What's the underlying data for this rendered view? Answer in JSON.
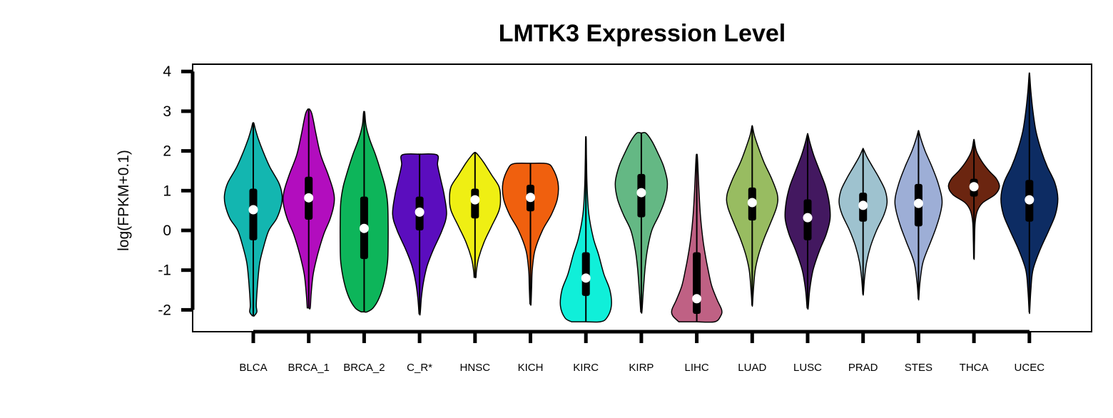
{
  "chart_data": {
    "type": "violin",
    "title": "LMTK3 Expression Level",
    "xlabel": "",
    "ylabel": "log(FPKM+0.1)",
    "ylim": [
      -2.55,
      4.2
    ],
    "yticks": [
      -2,
      -1,
      0,
      1,
      2,
      3,
      4
    ],
    "categories": [
      "BLCA",
      "BRCA_1",
      "BRCA_2",
      "C_R*",
      "HNSC",
      "KICH",
      "KIRC",
      "KIRP",
      "LIHC",
      "LUAD",
      "LUSC",
      "PRAD",
      "STES",
      "THCA",
      "UCEC"
    ],
    "colors": [
      "#13B6B0",
      "#B20DBE",
      "#0DB55A",
      "#5B0DBE",
      "#EFEF13",
      "#F0600E",
      "#10EFD9",
      "#64B884",
      "#BF6184",
      "#98BC61",
      "#431860",
      "#9EC2CF",
      "#9DAED6",
      "#6B2510",
      "#0D2C63"
    ],
    "series": [
      {
        "min": -2.15,
        "q1": -0.25,
        "median": 0.52,
        "q3": 1.05,
        "max": 2.7
      },
      {
        "min": -1.95,
        "q1": 0.27,
        "median": 0.82,
        "q3": 1.35,
        "max": 3.05
      },
      {
        "min": -2.05,
        "q1": -0.72,
        "median": 0.05,
        "q3": 0.85,
        "max": 2.97
      },
      {
        "min": -2.1,
        "q1": 0.0,
        "median": 0.46,
        "q3": 0.85,
        "max": 1.92
      },
      {
        "min": -1.18,
        "q1": 0.3,
        "median": 0.77,
        "q3": 1.05,
        "max": 1.96
      },
      {
        "min": -1.85,
        "q1": 0.48,
        "median": 0.83,
        "q3": 1.15,
        "max": 1.68
      },
      {
        "min": -2.3,
        "q1": -1.65,
        "median": -1.2,
        "q3": -0.55,
        "max": 2.32
      },
      {
        "min": -2.05,
        "q1": 0.33,
        "median": 0.95,
        "q3": 1.42,
        "max": 2.45
      },
      {
        "min": -2.3,
        "q1": -2.1,
        "median": -1.72,
        "q3": -0.55,
        "max": 1.88
      },
      {
        "min": -1.88,
        "q1": 0.25,
        "median": 0.7,
        "q3": 1.08,
        "max": 2.62
      },
      {
        "min": -1.95,
        "q1": -0.25,
        "median": 0.32,
        "q3": 0.78,
        "max": 2.42
      },
      {
        "min": -1.6,
        "q1": 0.22,
        "median": 0.63,
        "q3": 0.95,
        "max": 2.05
      },
      {
        "min": -1.72,
        "q1": 0.1,
        "median": 0.68,
        "q3": 1.17,
        "max": 2.5
      },
      {
        "min": -0.7,
        "q1": 0.85,
        "median": 1.1,
        "q3": 1.3,
        "max": 2.27
      },
      {
        "min": -2.05,
        "q1": 0.22,
        "median": 0.77,
        "q3": 1.27,
        "max": 3.93
      }
    ],
    "density": [
      [
        [
          -2.15,
          0.03
        ],
        [
          -2.05,
          0.12
        ],
        [
          -1.9,
          0.1
        ],
        [
          -1.6,
          0.12
        ],
        [
          -1.2,
          0.16
        ],
        [
          -0.8,
          0.22
        ],
        [
          -0.4,
          0.35
        ],
        [
          0.0,
          0.52
        ],
        [
          0.3,
          0.78
        ],
        [
          0.65,
          0.94
        ],
        [
          0.9,
          0.96
        ],
        [
          1.2,
          0.85
        ],
        [
          1.6,
          0.55
        ],
        [
          2.0,
          0.32
        ],
        [
          2.3,
          0.17
        ],
        [
          2.55,
          0.07
        ],
        [
          2.7,
          0.02
        ]
      ],
      [
        [
          -1.95,
          0.05
        ],
        [
          -1.6,
          0.08
        ],
        [
          -1.1,
          0.15
        ],
        [
          -0.6,
          0.3
        ],
        [
          -0.1,
          0.5
        ],
        [
          0.3,
          0.72
        ],
        [
          0.7,
          0.85
        ],
        [
          1.0,
          0.82
        ],
        [
          1.4,
          0.65
        ],
        [
          1.9,
          0.4
        ],
        [
          2.4,
          0.25
        ],
        [
          2.75,
          0.16
        ],
        [
          2.95,
          0.1
        ],
        [
          3.05,
          0.03
        ]
      ],
      [
        [
          -2.05,
          0.1
        ],
        [
          -1.95,
          0.3
        ],
        [
          -1.7,
          0.5
        ],
        [
          -1.3,
          0.67
        ],
        [
          -0.8,
          0.78
        ],
        [
          -0.3,
          0.8
        ],
        [
          0.2,
          0.8
        ],
        [
          0.7,
          0.78
        ],
        [
          1.1,
          0.7
        ],
        [
          1.5,
          0.55
        ],
        [
          1.9,
          0.38
        ],
        [
          2.3,
          0.18
        ],
        [
          2.65,
          0.06
        ],
        [
          2.97,
          0.02
        ]
      ],
      [
        [
          -2.1,
          0.02
        ],
        [
          -1.7,
          0.06
        ],
        [
          -1.3,
          0.13
        ],
        [
          -0.9,
          0.25
        ],
        [
          -0.5,
          0.45
        ],
        [
          0.0,
          0.75
        ],
        [
          0.4,
          0.9
        ],
        [
          0.9,
          0.82
        ],
        [
          1.3,
          0.7
        ],
        [
          1.65,
          0.6
        ],
        [
          1.9,
          0.58
        ],
        [
          1.92,
          0.0
        ]
      ],
      [
        [
          -1.18,
          0.03
        ],
        [
          -1.0,
          0.05
        ],
        [
          -0.7,
          0.12
        ],
        [
          -0.3,
          0.3
        ],
        [
          0.1,
          0.55
        ],
        [
          0.5,
          0.8
        ],
        [
          0.8,
          0.85
        ],
        [
          1.1,
          0.8
        ],
        [
          1.4,
          0.55
        ],
        [
          1.7,
          0.3
        ],
        [
          1.9,
          0.1
        ],
        [
          1.96,
          0.02
        ]
      ],
      [
        [
          -1.85,
          0.02
        ],
        [
          -1.4,
          0.04
        ],
        [
          -1.0,
          0.06
        ],
        [
          -0.5,
          0.15
        ],
        [
          0.0,
          0.4
        ],
        [
          0.4,
          0.7
        ],
        [
          0.8,
          0.9
        ],
        [
          1.2,
          0.92
        ],
        [
          1.55,
          0.75
        ],
        [
          1.68,
          0.55
        ],
        [
          1.69,
          0.0
        ]
      ],
      [
        [
          -2.3,
          0.48
        ],
        [
          -2.2,
          0.7
        ],
        [
          -1.9,
          0.85
        ],
        [
          -1.5,
          0.8
        ],
        [
          -1.1,
          0.6
        ],
        [
          -0.6,
          0.42
        ],
        [
          -0.2,
          0.25
        ],
        [
          0.4,
          0.1
        ],
        [
          1.1,
          0.04
        ],
        [
          1.8,
          0.02
        ],
        [
          2.32,
          0.01
        ]
      ],
      [
        [
          -2.05,
          0.02
        ],
        [
          -1.6,
          0.06
        ],
        [
          -1.0,
          0.12
        ],
        [
          -0.5,
          0.2
        ],
        [
          0.0,
          0.35
        ],
        [
          0.4,
          0.6
        ],
        [
          0.8,
          0.8
        ],
        [
          1.2,
          0.87
        ],
        [
          1.6,
          0.75
        ],
        [
          1.95,
          0.55
        ],
        [
          2.25,
          0.35
        ],
        [
          2.45,
          0.15
        ]
      ],
      [
        [
          -2.3,
          0.6
        ],
        [
          -2.15,
          0.8
        ],
        [
          -2.0,
          0.83
        ],
        [
          -1.75,
          0.68
        ],
        [
          -1.4,
          0.5
        ],
        [
          -1.0,
          0.38
        ],
        [
          -0.6,
          0.28
        ],
        [
          -0.2,
          0.2
        ],
        [
          0.3,
          0.13
        ],
        [
          0.9,
          0.08
        ],
        [
          1.4,
          0.05
        ],
        [
          1.88,
          0.02
        ]
      ],
      [
        [
          -1.88,
          0.01
        ],
        [
          -1.5,
          0.04
        ],
        [
          -1.0,
          0.1
        ],
        [
          -0.6,
          0.22
        ],
        [
          -0.2,
          0.4
        ],
        [
          0.2,
          0.62
        ],
        [
          0.6,
          0.82
        ],
        [
          0.9,
          0.84
        ],
        [
          1.3,
          0.65
        ],
        [
          1.7,
          0.4
        ],
        [
          2.1,
          0.2
        ],
        [
          2.4,
          0.07
        ],
        [
          2.62,
          0.01
        ]
      ],
      [
        [
          -1.95,
          0.02
        ],
        [
          -1.5,
          0.07
        ],
        [
          -1.0,
          0.18
        ],
        [
          -0.5,
          0.4
        ],
        [
          -0.1,
          0.62
        ],
        [
          0.3,
          0.75
        ],
        [
          0.7,
          0.72
        ],
        [
          1.1,
          0.6
        ],
        [
          1.5,
          0.4
        ],
        [
          1.9,
          0.2
        ],
        [
          2.2,
          0.08
        ],
        [
          2.42,
          0.01
        ]
      ],
      [
        [
          -1.6,
          0.01
        ],
        [
          -1.2,
          0.05
        ],
        [
          -0.8,
          0.12
        ],
        [
          -0.4,
          0.25
        ],
        [
          0.0,
          0.45
        ],
        [
          0.4,
          0.7
        ],
        [
          0.7,
          0.8
        ],
        [
          1.0,
          0.74
        ],
        [
          1.3,
          0.55
        ],
        [
          1.6,
          0.32
        ],
        [
          1.85,
          0.13
        ],
        [
          2.05,
          0.01
        ]
      ],
      [
        [
          -1.72,
          0.01
        ],
        [
          -1.3,
          0.05
        ],
        [
          -0.8,
          0.15
        ],
        [
          -0.3,
          0.4
        ],
        [
          0.1,
          0.6
        ],
        [
          0.5,
          0.75
        ],
        [
          0.8,
          0.78
        ],
        [
          1.2,
          0.65
        ],
        [
          1.6,
          0.45
        ],
        [
          2.0,
          0.22
        ],
        [
          2.3,
          0.08
        ],
        [
          2.5,
          0.01
        ]
      ],
      [
        [
          -0.7,
          0.01
        ],
        [
          -0.3,
          0.02
        ],
        [
          0.2,
          0.04
        ],
        [
          0.5,
          0.12
        ],
        [
          0.7,
          0.3
        ],
        [
          0.9,
          0.7
        ],
        [
          1.1,
          0.85
        ],
        [
          1.3,
          0.75
        ],
        [
          1.5,
          0.5
        ],
        [
          1.75,
          0.25
        ],
        [
          2.0,
          0.08
        ],
        [
          2.27,
          0.01
        ]
      ],
      [
        [
          -2.05,
          0.01
        ],
        [
          -1.5,
          0.05
        ],
        [
          -1.0,
          0.12
        ],
        [
          -0.5,
          0.35
        ],
        [
          0.0,
          0.65
        ],
        [
          0.4,
          0.87
        ],
        [
          0.8,
          0.95
        ],
        [
          1.2,
          0.85
        ],
        [
          1.6,
          0.6
        ],
        [
          2.0,
          0.4
        ],
        [
          2.5,
          0.22
        ],
        [
          3.0,
          0.12
        ],
        [
          3.5,
          0.05
        ],
        [
          3.93,
          0.01
        ]
      ]
    ]
  }
}
